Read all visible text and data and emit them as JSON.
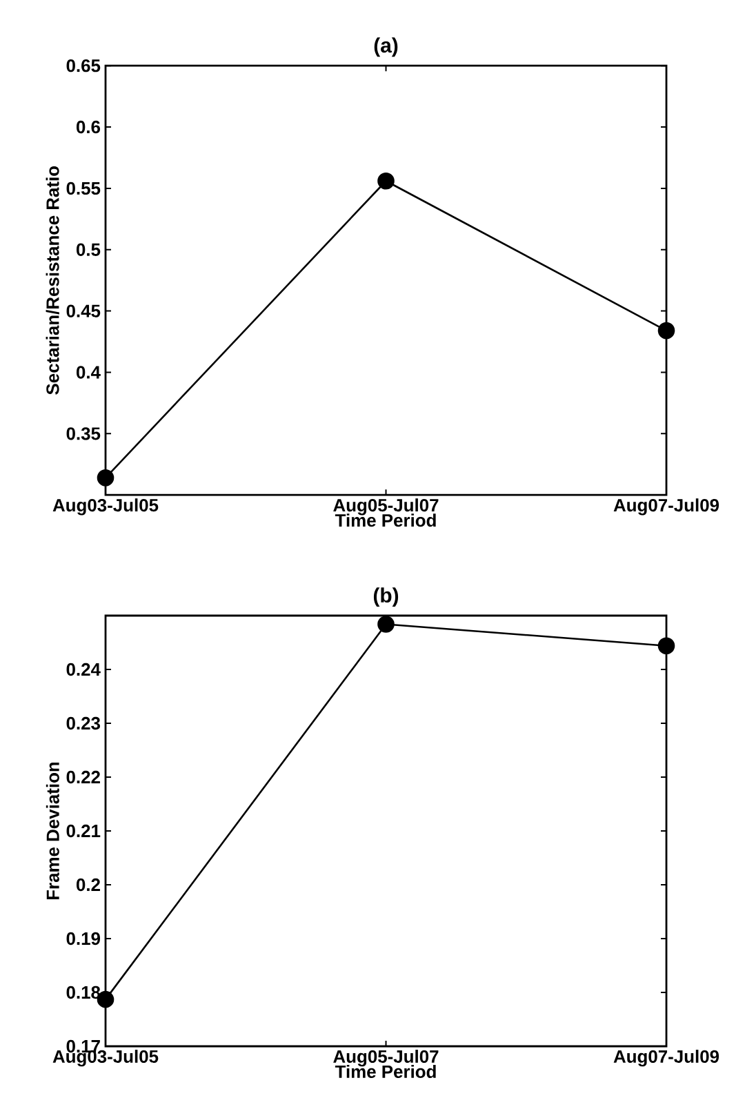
{
  "chart_data": [
    {
      "type": "line",
      "title": "(a)",
      "xlabel": "Time Period",
      "ylabel": "Sectarian/Resistance Ratio",
      "categories": [
        "Aug03-Jul05",
        "Aug05-Jul07",
        "Aug07-Jul09"
      ],
      "series": [
        {
          "color": "#000000",
          "values": [
            0.314,
            0.556,
            0.434
          ]
        }
      ],
      "ylim": [
        0.3,
        0.65
      ],
      "yticks": [
        0.35,
        0.4,
        0.45,
        0.5,
        0.55,
        0.6,
        0.65
      ],
      "marker": "circle",
      "line_style": "solid"
    },
    {
      "type": "line",
      "title": "(b)",
      "xlabel": "Time Period",
      "ylabel": "Frame Deviation",
      "categories": [
        "Aug03-Jul05",
        "Aug05-Jul07",
        "Aug07-Jul09"
      ],
      "series": [
        {
          "color": "#000000",
          "values": [
            0.1787,
            0.2484,
            0.2444
          ]
        }
      ],
      "ylim": [
        0.17,
        0.25
      ],
      "yticks": [
        0.17,
        0.18,
        0.19,
        0.2,
        0.21,
        0.22,
        0.23,
        0.24
      ],
      "marker": "circle",
      "line_style": "solid"
    }
  ]
}
